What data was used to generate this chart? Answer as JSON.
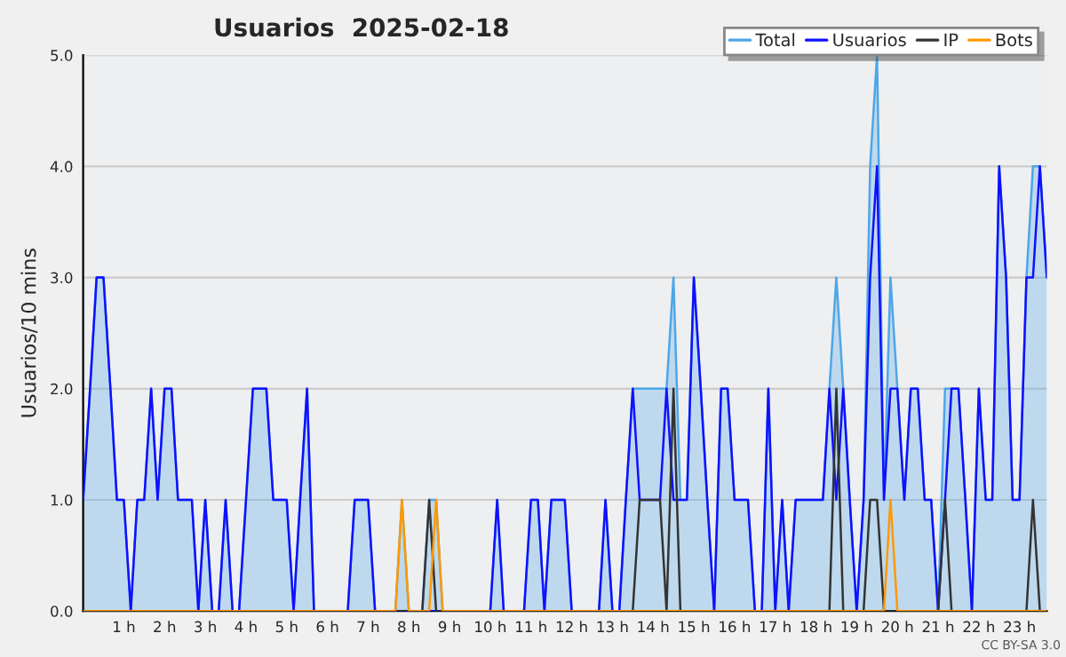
{
  "chart_data": {
    "type": "line",
    "title": "Usuarios  2025-02-18",
    "ylabel": "Usuarios/10 mins",
    "annotations": [
      "CC BY-SA 3.0"
    ],
    "x": [
      0,
      0.17,
      0.33,
      0.5,
      0.67,
      0.83,
      1,
      1.17,
      1.33,
      1.5,
      1.67,
      1.83,
      2,
      2.17,
      2.33,
      2.5,
      2.67,
      2.83,
      3,
      3.17,
      3.33,
      3.5,
      3.67,
      3.83,
      4,
      4.17,
      4.33,
      4.5,
      4.67,
      4.83,
      5,
      5.17,
      5.33,
      5.5,
      5.67,
      5.83,
      6,
      6.17,
      6.33,
      6.5,
      6.67,
      6.83,
      7,
      7.17,
      7.33,
      7.5,
      7.67,
      7.83,
      8,
      8.17,
      8.33,
      8.5,
      8.67,
      8.83,
      9,
      9.17,
      9.33,
      9.5,
      9.67,
      9.83,
      10,
      10.17,
      10.33,
      10.5,
      10.67,
      10.83,
      11,
      11.17,
      11.33,
      11.5,
      11.67,
      11.83,
      12,
      12.17,
      12.33,
      12.5,
      12.67,
      12.83,
      13,
      13.17,
      13.33,
      13.5,
      13.67,
      13.83,
      14,
      14.17,
      14.33,
      14.5,
      14.67,
      14.83,
      15,
      15.17,
      15.33,
      15.5,
      15.67,
      15.83,
      16,
      16.17,
      16.33,
      16.5,
      16.67,
      16.83,
      17,
      17.17,
      17.33,
      17.5,
      17.67,
      17.83,
      18,
      18.17,
      18.33,
      18.5,
      18.67,
      18.83,
      19,
      19.17,
      19.33,
      19.5,
      19.67,
      19.83,
      20,
      20.17,
      20.33,
      20.5,
      20.67,
      20.83,
      21,
      21.17,
      21.33,
      21.5,
      21.67,
      21.83,
      22,
      22.17,
      22.33,
      22.5,
      22.67,
      22.83,
      23,
      23.17,
      23.33,
      23.5,
      23.67
    ],
    "series": [
      {
        "name": "Total",
        "type": "area",
        "color": "#4ea6e8",
        "values": [
          1,
          2,
          3,
          3,
          2,
          1,
          1,
          0,
          1,
          1,
          2,
          1,
          2,
          2,
          1,
          1,
          1,
          0,
          1,
          0,
          0,
          1,
          0,
          0,
          1,
          2,
          2,
          2,
          1,
          1,
          1,
          0,
          1,
          2,
          0,
          0,
          0,
          0,
          0,
          0,
          1,
          1,
          1,
          0,
          0,
          0,
          0,
          1,
          0,
          0,
          0,
          1,
          1,
          0,
          0,
          0,
          0,
          0,
          0,
          0,
          0,
          1,
          0,
          0,
          0,
          0,
          1,
          1,
          0,
          1,
          1,
          1,
          0,
          0,
          0,
          0,
          0,
          1,
          0,
          0,
          1,
          2,
          2,
          2,
          2,
          2,
          2,
          3,
          1,
          1,
          3,
          2,
          1,
          0,
          2,
          2,
          1,
          1,
          1,
          0,
          0,
          2,
          0,
          1,
          0,
          1,
          1,
          1,
          1,
          1,
          2,
          3,
          2,
          1,
          0,
          1,
          4,
          5,
          1,
          3,
          2,
          1,
          2,
          2,
          1,
          1,
          0,
          2,
          2,
          2,
          1,
          0,
          2,
          1,
          1,
          4,
          3,
          1,
          1,
          3,
          4,
          4,
          3
        ]
      },
      {
        "name": "Usuarios",
        "color": "#1010ff",
        "values": [
          1,
          2,
          3,
          3,
          2,
          1,
          1,
          0,
          1,
          1,
          2,
          1,
          2,
          2,
          1,
          1,
          1,
          0,
          1,
          0,
          0,
          1,
          0,
          0,
          1,
          2,
          2,
          2,
          1,
          1,
          1,
          0,
          1,
          2,
          0,
          0,
          0,
          0,
          0,
          0,
          1,
          1,
          1,
          0,
          0,
          0,
          0,
          0,
          0,
          0,
          0,
          0,
          0,
          0,
          0,
          0,
          0,
          0,
          0,
          0,
          0,
          1,
          0,
          0,
          0,
          0,
          1,
          1,
          0,
          1,
          1,
          1,
          0,
          0,
          0,
          0,
          0,
          1,
          0,
          0,
          1,
          2,
          1,
          1,
          1,
          1,
          2,
          1,
          1,
          1,
          3,
          2,
          1,
          0,
          2,
          2,
          1,
          1,
          1,
          0,
          0,
          2,
          0,
          1,
          0,
          1,
          1,
          1,
          1,
          1,
          2,
          1,
          2,
          1,
          0,
          1,
          3,
          4,
          1,
          2,
          2,
          1,
          2,
          2,
          1,
          1,
          0,
          1,
          2,
          2,
          1,
          0,
          2,
          1,
          1,
          4,
          3,
          1,
          1,
          3,
          3,
          4,
          3
        ]
      },
      {
        "name": "IP",
        "color": "#333333",
        "values": [
          0,
          0,
          0,
          0,
          0,
          0,
          0,
          0,
          0,
          0,
          0,
          0,
          0,
          0,
          0,
          0,
          0,
          0,
          0,
          0,
          0,
          0,
          0,
          0,
          0,
          0,
          0,
          0,
          0,
          0,
          0,
          0,
          0,
          0,
          0,
          0,
          0,
          0,
          0,
          0,
          0,
          0,
          0,
          0,
          0,
          0,
          0,
          0,
          0,
          0,
          0,
          1,
          0,
          0,
          0,
          0,
          0,
          0,
          0,
          0,
          0,
          0,
          0,
          0,
          0,
          0,
          0,
          0,
          0,
          0,
          0,
          0,
          0,
          0,
          0,
          0,
          0,
          0,
          0,
          0,
          0,
          0,
          1,
          1,
          1,
          1,
          0,
          2,
          0,
          0,
          0,
          0,
          0,
          0,
          0,
          0,
          0,
          0,
          0,
          0,
          0,
          0,
          0,
          0,
          0,
          0,
          0,
          0,
          0,
          0,
          0,
          2,
          0,
          0,
          0,
          0,
          1,
          1,
          0,
          0,
          0,
          0,
          0,
          0,
          0,
          0,
          0,
          1,
          0,
          0,
          0,
          0,
          0,
          0,
          0,
          0,
          0,
          0,
          0,
          0,
          1,
          0,
          0
        ]
      },
      {
        "name": "Bots",
        "color": "#ff9900",
        "values": [
          0,
          0,
          0,
          0,
          0,
          0,
          0,
          0,
          0,
          0,
          0,
          0,
          0,
          0,
          0,
          0,
          0,
          0,
          0,
          0,
          0,
          0,
          0,
          0,
          0,
          0,
          0,
          0,
          0,
          0,
          0,
          0,
          0,
          0,
          0,
          0,
          0,
          0,
          0,
          0,
          0,
          0,
          0,
          0,
          0,
          0,
          0,
          1,
          0,
          0,
          0,
          0,
          1,
          0,
          0,
          0,
          0,
          0,
          0,
          0,
          0,
          0,
          0,
          0,
          0,
          0,
          0,
          0,
          0,
          0,
          0,
          0,
          0,
          0,
          0,
          0,
          0,
          0,
          0,
          0,
          0,
          0,
          0,
          0,
          0,
          0,
          0,
          0,
          0,
          0,
          0,
          0,
          0,
          0,
          0,
          0,
          0,
          0,
          0,
          0,
          0,
          0,
          0,
          0,
          0,
          0,
          0,
          0,
          0,
          0,
          0,
          0,
          0,
          0,
          0,
          0,
          0,
          0,
          0,
          1,
          0,
          0,
          0,
          0,
          0,
          0,
          0,
          0,
          0,
          0,
          0,
          0,
          0,
          0,
          0,
          0,
          0,
          0,
          0,
          0,
          0,
          0,
          0
        ]
      }
    ],
    "xlim": [
      0,
      23.67
    ],
    "xticks": [
      {
        "value": 1,
        "label": "1 h"
      },
      {
        "value": 2,
        "label": "2 h"
      },
      {
        "value": 3,
        "label": "3 h"
      },
      {
        "value": 4,
        "label": "4 h"
      },
      {
        "value": 5,
        "label": "5 h"
      },
      {
        "value": 6,
        "label": "6 h"
      },
      {
        "value": 7,
        "label": "7 h"
      },
      {
        "value": 8,
        "label": "8 h"
      },
      {
        "value": 9,
        "label": "9 h"
      },
      {
        "value": 10,
        "label": "10 h"
      },
      {
        "value": 11,
        "label": "11 h"
      },
      {
        "value": 12,
        "label": "12 h"
      },
      {
        "value": 13,
        "label": "13 h"
      },
      {
        "value": 14,
        "label": "14 h"
      },
      {
        "value": 15,
        "label": "15 h"
      },
      {
        "value": 16,
        "label": "16 h"
      },
      {
        "value": 17,
        "label": "17 h"
      },
      {
        "value": 18,
        "label": "18 h"
      },
      {
        "value": 19,
        "label": "19 h"
      },
      {
        "value": 20,
        "label": "20 h"
      },
      {
        "value": 21,
        "label": "21 h"
      },
      {
        "value": 22,
        "label": "22 h"
      },
      {
        "value": 23,
        "label": "23 h"
      }
    ],
    "ylim": [
      0,
      5
    ],
    "yticks": [
      {
        "value": 0,
        "label": "0.0"
      },
      {
        "value": 1,
        "label": "1.0"
      },
      {
        "value": 2,
        "label": "2.0"
      },
      {
        "value": 3,
        "label": "3.0"
      },
      {
        "value": 4,
        "label": "4.0"
      },
      {
        "value": 5,
        "label": "5.0"
      }
    ],
    "grid": "y",
    "legend": "top right",
    "marker": "none",
    "line_style": "solid"
  }
}
